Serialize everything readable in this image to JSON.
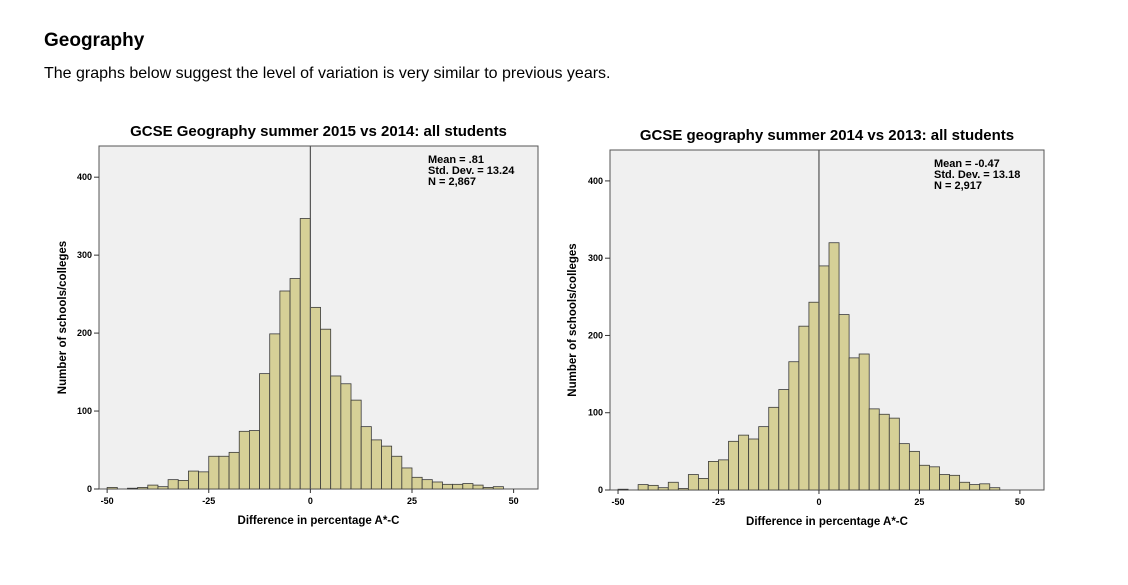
{
  "page": {
    "heading": "Geography",
    "intro": "The graphs below suggest the level of variation is very similar to previous years."
  },
  "chart_data": [
    {
      "type": "bar",
      "title": "GCSE Geography summer 2015 vs 2014: all students",
      "xlabel": "Difference in percentage A*-C",
      "ylabel": "Number of schools/colleges",
      "xlim": [
        -52,
        56
      ],
      "ylim": [
        0,
        440
      ],
      "x_ticks": [
        -50,
        -25,
        0,
        25,
        50
      ],
      "x_tick_labels": [
        "-50",
        "-25",
        "0",
        "25",
        "50"
      ],
      "y_ticks": [
        0,
        100,
        200,
        300,
        400
      ],
      "y_tick_labels": [
        "0",
        "100",
        "200",
        "300",
        "400"
      ],
      "bin_width": 2.5,
      "bin_start": -50,
      "values": [
        2,
        0,
        1,
        2,
        5,
        3,
        12,
        11,
        23,
        22,
        42,
        42,
        47,
        74,
        75,
        148,
        199,
        254,
        270,
        347,
        233,
        205,
        145,
        135,
        114,
        80,
        63,
        55,
        42,
        27,
        15,
        12,
        9,
        6,
        6,
        7,
        5,
        2,
        3
      ],
      "mean_line": 0,
      "stats": [
        "Mean = .81",
        "Std. Dev. = 13.24",
        "N = 2,867"
      ],
      "bar_color": "#d6d097",
      "plot_bg": "#f0f0f0",
      "grid": false
    },
    {
      "type": "bar",
      "title": "GCSE geography summer 2014 vs 2013: all students",
      "xlabel": "Difference in percentage A*-C",
      "ylabel": "Number of schools/colleges",
      "xlim": [
        -52,
        56
      ],
      "ylim": [
        0,
        440
      ],
      "x_ticks": [
        -50,
        -25,
        0,
        25,
        50
      ],
      "x_tick_labels": [
        "-50",
        "-25",
        "0",
        "25",
        "50"
      ],
      "y_ticks": [
        0,
        100,
        200,
        300,
        400
      ],
      "y_tick_labels": [
        "0",
        "100",
        "200",
        "300",
        "400"
      ],
      "bin_width": 2.5,
      "bin_start": -50,
      "values": [
        1,
        0,
        7,
        6,
        3,
        10,
        2,
        20,
        15,
        37,
        39,
        63,
        71,
        66,
        82,
        107,
        130,
        166,
        212,
        243,
        290,
        320,
        227,
        171,
        176,
        105,
        98,
        93,
        60,
        50,
        32,
        30,
        20,
        19,
        10,
        7,
        8,
        3,
        0
      ],
      "mean_line": 0,
      "stats": [
        "Mean = -0.47",
        "Std. Dev. = 13.18",
        "N = 2,917"
      ],
      "bar_color": "#d6d097",
      "plot_bg": "#f0f0f0",
      "grid": false
    }
  ]
}
